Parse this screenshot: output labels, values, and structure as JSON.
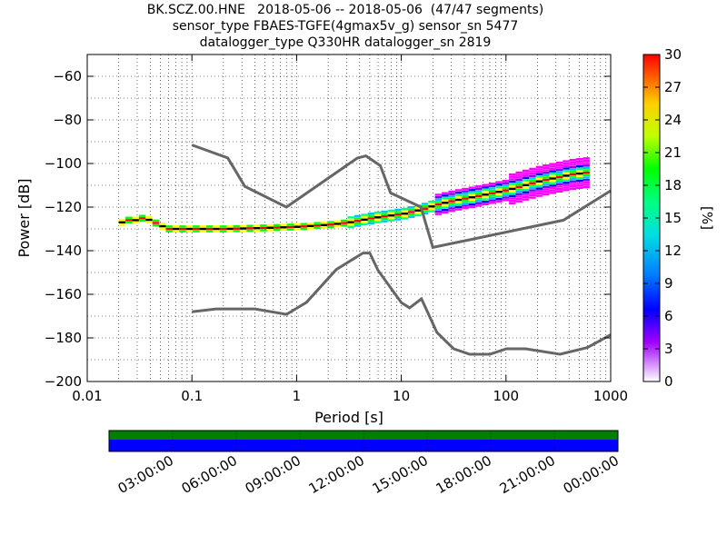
{
  "title": {
    "line1": "BK.SCZ.00.HNE   2018-05-06 -- 2018-05-06  (47/47 segments)",
    "line2": "sensor_type FBAES-TGFE(4gmax5v_g) sensor_sn 5477",
    "line3": "datalogger_type Q330HR datalogger_sn 2819"
  },
  "chart_data": {
    "type": "heatmap",
    "xlabel": "Period [s]",
    "ylabel": "Power [dB]",
    "xscale": "log",
    "xlim": [
      0.01,
      1000
    ],
    "ylim": [
      -200,
      -50
    ],
    "xticks": [
      "0.01",
      "0.1",
      "1",
      "10",
      "100",
      "1000"
    ],
    "yticks": [
      "−60",
      "−80",
      "−100",
      "−120",
      "−140",
      "−160",
      "−180",
      "−200"
    ],
    "grid": true,
    "colorbar": {
      "label": "[%]",
      "range": [
        0,
        30
      ],
      "ticks": [
        "0",
        "3",
        "6",
        "9",
        "12",
        "15",
        "18",
        "21",
        "24",
        "27",
        "30"
      ]
    },
    "nhnm": [
      [
        0.1,
        -91.5
      ],
      [
        0.22,
        -97.4
      ],
      [
        0.32,
        -110.5
      ],
      [
        0.8,
        -120
      ],
      [
        3.8,
        -97.5
      ],
      [
        4.6,
        -96.5
      ],
      [
        6.3,
        -101
      ],
      [
        7.9,
        -113.5
      ],
      [
        15.4,
        -120
      ],
      [
        20,
        -138.5
      ],
      [
        354,
        -126
      ],
      [
        1000,
        -112.5
      ]
    ],
    "nlnm": [
      [
        0.1,
        -168
      ],
      [
        0.17,
        -166.7
      ],
      [
        0.4,
        -166.7
      ],
      [
        0.8,
        -169.2
      ],
      [
        1.24,
        -163.7
      ],
      [
        2.4,
        -148.6
      ],
      [
        4.3,
        -141.1
      ],
      [
        5,
        -141.1
      ],
      [
        6,
        -149
      ],
      [
        10,
        -163.8
      ],
      [
        12,
        -166.2
      ],
      [
        15.6,
        -162.1
      ],
      [
        21.9,
        -177.5
      ],
      [
        31.6,
        -185
      ],
      [
        45,
        -187.5
      ],
      [
        70,
        -187.5
      ],
      [
        101,
        -185
      ],
      [
        154,
        -185
      ],
      [
        328,
        -187.5
      ],
      [
        600,
        -184.4
      ],
      [
        1000,
        -178.6
      ]
    ],
    "ppsd_mode": [
      [
        0.02,
        -127
      ],
      [
        0.022,
        -126
      ],
      [
        0.027,
        -126
      ],
      [
        0.032,
        -125
      ],
      [
        0.037,
        -126
      ],
      [
        0.045,
        -128
      ],
      [
        0.055,
        -130
      ],
      [
        0.1,
        -130
      ],
      [
        0.2,
        -130
      ],
      [
        0.5,
        -129.5
      ],
      [
        1,
        -129
      ],
      [
        2,
        -128
      ],
      [
        3,
        -127
      ],
      [
        5,
        -125
      ],
      [
        10,
        -123
      ],
      [
        15,
        -121
      ],
      [
        20,
        -119
      ],
      [
        30,
        -117
      ],
      [
        50,
        -115
      ],
      [
        100,
        -112
      ],
      [
        200,
        -108
      ],
      [
        400,
        -105
      ],
      [
        600,
        -104
      ]
    ],
    "timeline": {
      "ticks": [
        "03:00:00",
        "06:00:00",
        "09:00:00",
        "12:00:00",
        "15:00:00",
        "18:00:00",
        "21:00:00",
        "00:00:00"
      ],
      "data_color": "#0000ff",
      "gap_color": "#008000"
    }
  }
}
